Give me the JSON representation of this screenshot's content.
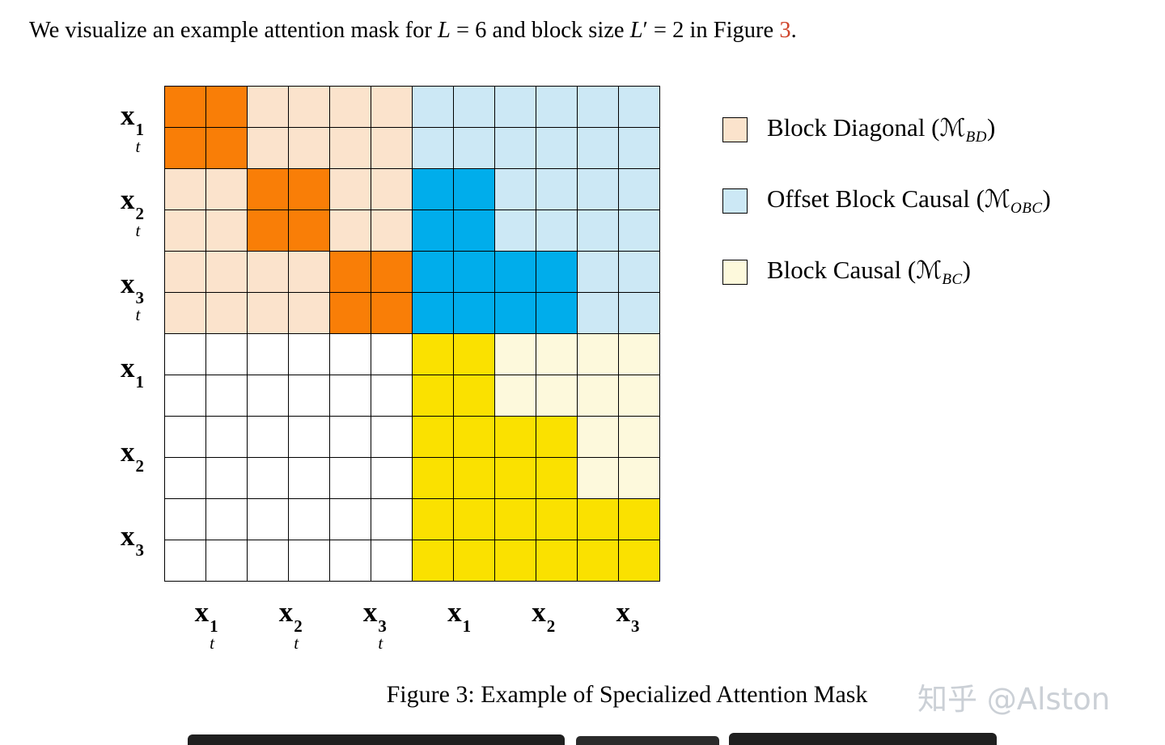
{
  "intro": {
    "segments": [
      {
        "text": "We visualize an example attention mask for "
      },
      {
        "text": "L"
      },
      {
        "text": " = 6 and block size "
      },
      {
        "text": "L"
      },
      {
        "text": "′"
      },
      {
        "text": " = 2 in Figure "
      },
      {
        "text": "3"
      },
      {
        "text": "."
      }
    ],
    "link_color": "#CF452C"
  },
  "figure": {
    "row_labels": [
      {
        "base": "x",
        "sup": "1",
        "sub": "t"
      },
      {
        "base": "x",
        "sup": "2",
        "sub": "t"
      },
      {
        "base": "x",
        "sup": "3",
        "sub": "t"
      },
      {
        "base": "x",
        "sup": "1",
        "sub": ""
      },
      {
        "base": "x",
        "sup": "2",
        "sub": ""
      },
      {
        "base": "x",
        "sup": "3",
        "sub": ""
      }
    ],
    "col_labels": [
      {
        "base": "x",
        "sup": "1",
        "sub": "t"
      },
      {
        "base": "x",
        "sup": "2",
        "sub": "t"
      },
      {
        "base": "x",
        "sup": "3",
        "sub": "t"
      },
      {
        "base": "x",
        "sup": "1",
        "sub": ""
      },
      {
        "base": "x",
        "sup": "2",
        "sub": ""
      },
      {
        "base": "x",
        "sup": "3",
        "sub": ""
      }
    ],
    "legend": {
      "items": [
        {
          "prefix": "Block Diagonal (",
          "symbol": "ℳ",
          "subscript": "BD",
          "suffix": ")",
          "color": "#FBE3CC"
        },
        {
          "prefix": "Offset Block Causal (",
          "symbol": "ℳ",
          "subscript": "OBC",
          "suffix": ")",
          "color": "#CCE8F5"
        },
        {
          "prefix": "Block Causal (",
          "symbol": "ℳ",
          "subscript": "BC",
          "suffix": ")",
          "color": "#FDF9DC"
        }
      ]
    },
    "caption": "Figure 3: Example of Specialized Attention Mask"
  },
  "chart_data": {
    "type": "heatmap",
    "title": "Example attention mask for L = 6 and block size L' = 2",
    "row_blocks": [
      "x_t^1",
      "x_t^2",
      "x_t^3",
      "x^1",
      "x^2",
      "x^3"
    ],
    "col_blocks": [
      "x_t^1",
      "x_t^2",
      "x_t^3",
      "x^1",
      "x^2",
      "x^3"
    ],
    "cells_per_block": 2,
    "matrix": [
      "DDddddoooooo",
      "DDddddoooooo",
      "ddDDddOOoooo",
      "ddDDddOOoooo",
      "ddddDDOOOOoo",
      "ddddDDOOOOoo",
      "......CCcccc",
      "......CCcccc",
      "......CCCCcc",
      "......CCCCcc",
      "......CCCCCC",
      "......CCCCCC"
    ],
    "cell_colors": {
      "D": "#F97E07",
      "d": "#FBE3CC",
      "O": "#00ADEB",
      "o": "#CCE8F5",
      "C": "#FAE100",
      "c": "#FDF9DC",
      ".": "#FFFFFF"
    },
    "cell_names": {
      "D": "block-diagonal-active",
      "d": "block-diagonal-region",
      "O": "offset-block-causal-active",
      "o": "offset-block-causal-region",
      "C": "block-causal-active",
      "c": "block-causal-region",
      ".": "masked"
    }
  },
  "watermark": {
    "text": "知乎 @Alston",
    "color": "#CBD0D6"
  }
}
